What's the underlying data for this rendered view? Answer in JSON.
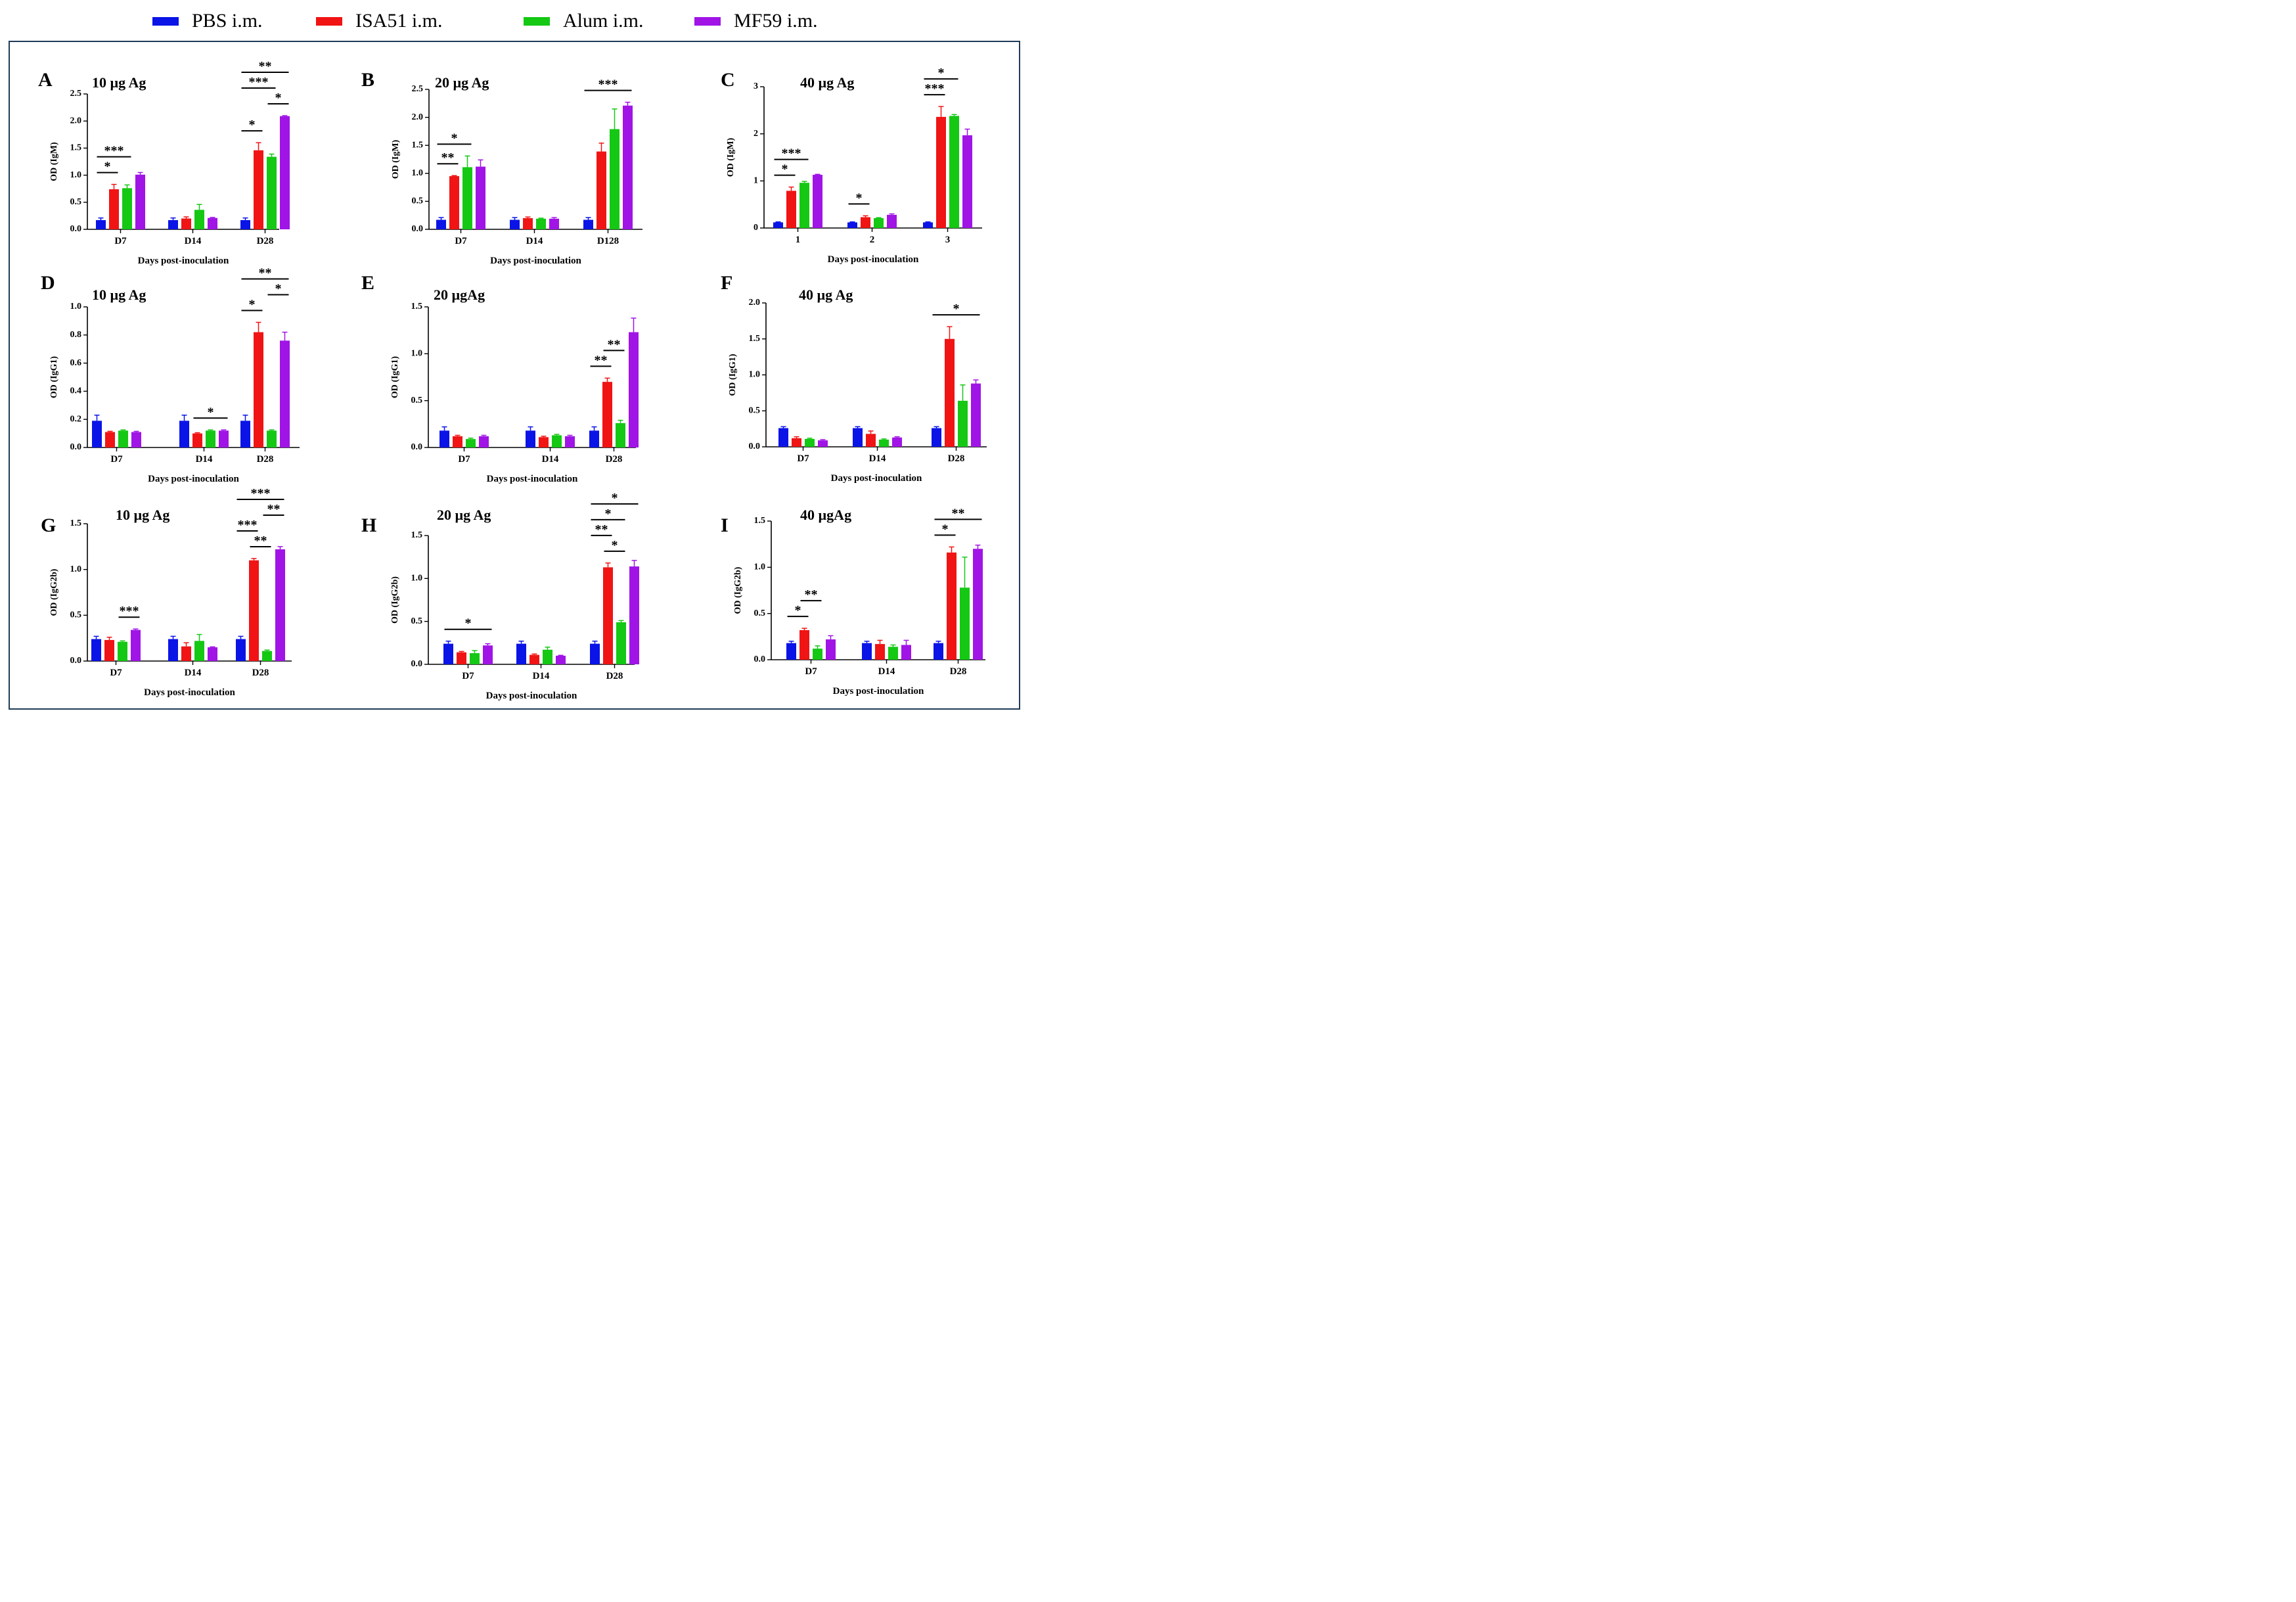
{
  "legend": {
    "items": [
      {
        "label": "PBS i.m.",
        "color": "#0a14e6"
      },
      {
        "label": "ISA51 i.m.",
        "color": "#f01414"
      },
      {
        "label": "Alum i.m.",
        "color": "#14c814"
      },
      {
        "label": "MF59 i.m.",
        "color": "#a014e6"
      }
    ]
  },
  "chart_data": [
    {
      "panel": "A",
      "type": "bar",
      "title": "10 µg Ag",
      "ylabel": "OD (IgM)",
      "xlabel": "Days post-inoculation",
      "categories": [
        "D7",
        "D14",
        "D28"
      ],
      "ylim": [
        0,
        2.5
      ],
      "yticks": [
        "0.0",
        "0.5",
        "1.0",
        "1.5",
        "2.0",
        "2.5"
      ],
      "series": [
        {
          "name": "PBS i.m.",
          "values": [
            0.17,
            0.17,
            0.17
          ],
          "err": [
            0.04,
            0.04,
            0.04
          ]
        },
        {
          "name": "ISA51 i.m.",
          "values": [
            0.74,
            0.2,
            1.46
          ],
          "err": [
            0.09,
            0.03,
            0.14
          ]
        },
        {
          "name": "Alum i.m.",
          "values": [
            0.76,
            0.36,
            1.34
          ],
          "err": [
            0.06,
            0.1,
            0.05
          ]
        },
        {
          "name": "MF59 i.m.",
          "values": [
            1.01,
            0.21,
            2.09
          ],
          "err": [
            0.04,
            0.01,
            0.01
          ]
        }
      ],
      "sig": [
        [
          "D7",
          0,
          1,
          "*"
        ],
        [
          "D7",
          0,
          2,
          "***"
        ],
        [
          "D28",
          0,
          1,
          "*"
        ],
        [
          "D28",
          2,
          3,
          "*"
        ],
        [
          "D28",
          0,
          2,
          "***"
        ],
        [
          "D28",
          0,
          3,
          "**"
        ]
      ]
    },
    {
      "panel": "B",
      "type": "bar",
      "title": "20 µg Ag",
      "ylabel": "OD (IgM)",
      "xlabel": "Days post-inoculation",
      "categories": [
        "D7",
        "D14",
        "D128"
      ],
      "ylim": [
        0,
        2.5
      ],
      "yticks": [
        "0.0",
        "0.5",
        "1.0",
        "1.5",
        "2.0",
        "2.5"
      ],
      "series": [
        {
          "name": "PBS i.m.",
          "values": [
            0.17,
            0.17,
            0.17
          ],
          "err": [
            0.04,
            0.04,
            0.04
          ]
        },
        {
          "name": "ISA51 i.m.",
          "values": [
            0.95,
            0.2,
            1.39
          ],
          "err": [
            0.01,
            0.02,
            0.15
          ]
        },
        {
          "name": "Alum i.m.",
          "values": [
            1.11,
            0.19,
            1.79
          ],
          "err": [
            0.2,
            0.01,
            0.36
          ]
        },
        {
          "name": "MF59 i.m.",
          "values": [
            1.12,
            0.19,
            2.21
          ],
          "err": [
            0.12,
            0.02,
            0.06
          ]
        }
      ],
      "sig": [
        [
          "D7",
          0,
          1,
          "**"
        ],
        [
          "D7",
          0,
          2,
          "*"
        ],
        [
          "D128",
          0,
          3,
          "***"
        ]
      ]
    },
    {
      "panel": "C",
      "type": "bar",
      "title": "40 µg Ag",
      "ylabel": "OD (IgM)",
      "xlabel": "Days post-inoculation",
      "categories": [
        "1",
        "2",
        "3"
      ],
      "ylim": [
        0,
        3
      ],
      "yticks": [
        "0",
        "1",
        "2",
        "3"
      ],
      "series": [
        {
          "name": "PBS i.m.",
          "values": [
            0.12,
            0.12,
            0.12
          ],
          "err": [
            0.01,
            0.01,
            0.01
          ]
        },
        {
          "name": "ISA51 i.m.",
          "values": [
            0.79,
            0.23,
            2.36
          ],
          "err": [
            0.08,
            0.03,
            0.22
          ]
        },
        {
          "name": "Alum i.m.",
          "values": [
            0.96,
            0.21,
            2.38
          ],
          "err": [
            0.03,
            0.01,
            0.03
          ]
        },
        {
          "name": "MF59 i.m.",
          "values": [
            1.13,
            0.28,
            1.97
          ],
          "err": [
            0.01,
            0.02,
            0.13
          ]
        }
      ],
      "sig": [
        [
          "1",
          0,
          1,
          "*"
        ],
        [
          "1",
          0,
          2,
          "***"
        ],
        [
          "2",
          0,
          1,
          "*"
        ],
        [
          "3",
          0,
          1,
          "***"
        ],
        [
          "3",
          0,
          2,
          "*"
        ]
      ]
    },
    {
      "panel": "D",
      "type": "bar",
      "title": "10 µg Ag",
      "ylabel": "OD (IgG1)",
      "xlabel": "Days post-inoculation",
      "categories": [
        "D7",
        "D14",
        "D28"
      ],
      "ylim": [
        0,
        1.0
      ],
      "yticks": [
        "0.0",
        "0.2",
        "0.4",
        "0.6",
        "0.8",
        "1.0"
      ],
      "series": [
        {
          "name": "PBS i.m.",
          "values": [
            0.19,
            0.19,
            0.19
          ],
          "err": [
            0.04,
            0.04,
            0.04
          ]
        },
        {
          "name": "ISA51 i.m.",
          "values": [
            0.11,
            0.1,
            0.82
          ],
          "err": [
            0.005,
            0.005,
            0.07
          ]
        },
        {
          "name": "Alum i.m.",
          "values": [
            0.12,
            0.12,
            0.12
          ],
          "err": [
            0.005,
            0.005,
            0.005
          ]
        },
        {
          "name": "MF59 i.m.",
          "values": [
            0.11,
            0.12,
            0.76
          ],
          "err": [
            0.005,
            0.005,
            0.06
          ]
        }
      ],
      "sig": [
        [
          "D14",
          1,
          3,
          "*"
        ],
        [
          "D28",
          0,
          1,
          "*"
        ],
        [
          "D28",
          2,
          3,
          "*"
        ],
        [
          "D28",
          0,
          3,
          "**"
        ]
      ]
    },
    {
      "panel": "E",
      "type": "bar",
      "title": "20 µgAg",
      "ylabel": "OD (IgG1)",
      "xlabel": "Days post-inoculation",
      "categories": [
        "D7",
        "D14",
        "D28"
      ],
      "ylim": [
        0,
        1.5
      ],
      "yticks": [
        "0.0",
        "0.5",
        "1.0",
        "1.5"
      ],
      "series": [
        {
          "name": "PBS i.m.",
          "values": [
            0.18,
            0.18,
            0.18
          ],
          "err": [
            0.04,
            0.04,
            0.04
          ]
        },
        {
          "name": "ISA51 i.m.",
          "values": [
            0.12,
            0.11,
            0.7
          ],
          "err": [
            0.01,
            0.01,
            0.04
          ]
        },
        {
          "name": "Alum i.m.",
          "values": [
            0.09,
            0.13,
            0.26
          ],
          "err": [
            0.01,
            0.01,
            0.03
          ]
        },
        {
          "name": "MF59 i.m.",
          "values": [
            0.12,
            0.12,
            1.23
          ],
          "err": [
            0.01,
            0.01,
            0.15
          ]
        }
      ],
      "sig": [
        [
          "D28",
          0,
          1,
          "**"
        ],
        [
          "D28",
          1,
          2,
          "**"
        ]
      ]
    },
    {
      "panel": "F",
      "type": "bar",
      "title": "40 µg Ag",
      "ylabel": "OD (IgG1)",
      "xlabel": "Days post-inoculation",
      "categories": [
        "D7",
        "D14",
        "D28"
      ],
      "ylim": [
        0,
        2.0
      ],
      "yticks": [
        "0.0",
        "0.5",
        "1.0",
        "1.5",
        "2.0"
      ],
      "series": [
        {
          "name": "PBS i.m.",
          "values": [
            0.26,
            0.26,
            0.26
          ],
          "err": [
            0.02,
            0.02,
            0.02
          ]
        },
        {
          "name": "ISA51 i.m.",
          "values": [
            0.12,
            0.18,
            1.5
          ],
          "err": [
            0.02,
            0.04,
            0.17
          ]
        },
        {
          "name": "Alum i.m.",
          "values": [
            0.11,
            0.1,
            0.64
          ],
          "err": [
            0.01,
            0.01,
            0.22
          ]
        },
        {
          "name": "MF59 i.m.",
          "values": [
            0.09,
            0.13,
            0.88
          ],
          "err": [
            0.01,
            0.01,
            0.05
          ]
        }
      ],
      "sig": [
        [
          "D28",
          0,
          3,
          "*"
        ]
      ]
    },
    {
      "panel": "G",
      "type": "bar",
      "title": "10 µg Ag",
      "ylabel": "OD (IgG2b)",
      "xlabel": "Days post-inoculation",
      "categories": [
        "D7",
        "D14",
        "D28"
      ],
      "ylim": [
        0,
        1.5
      ],
      "yticks": [
        "0.0",
        "0.5",
        "1.0",
        "1.5"
      ],
      "series": [
        {
          "name": "PBS i.m.",
          "values": [
            0.24,
            0.24,
            0.24
          ],
          "err": [
            0.03,
            0.03,
            0.03
          ]
        },
        {
          "name": "ISA51 i.m.",
          "values": [
            0.23,
            0.16,
            1.1
          ],
          "err": [
            0.03,
            0.04,
            0.02
          ]
        },
        {
          "name": "Alum i.m.",
          "values": [
            0.21,
            0.22,
            0.11
          ],
          "err": [
            0.01,
            0.07,
            0.01
          ]
        },
        {
          "name": "MF59 i.m.",
          "values": [
            0.34,
            0.15,
            1.22
          ],
          "err": [
            0.01,
            0.005,
            0.03
          ]
        }
      ],
      "sig": [
        [
          "D7",
          2,
          3,
          "***"
        ],
        [
          "D28",
          1,
          2,
          "**"
        ],
        [
          "D28",
          0,
          1,
          "***"
        ],
        [
          "D28",
          2,
          3,
          "**"
        ],
        [
          "D28",
          0,
          3,
          "***"
        ]
      ]
    },
    {
      "panel": "H",
      "type": "bar",
      "title": "20 µg Ag",
      "ylabel": "OD (IgG2b)",
      "xlabel": "Days post-inoculation",
      "categories": [
        "D7",
        "D14",
        "D28"
      ],
      "ylim": [
        0,
        1.5
      ],
      "yticks": [
        "0.0",
        "0.5",
        "1.0",
        "1.5"
      ],
      "series": [
        {
          "name": "PBS i.m.",
          "values": [
            0.24,
            0.24,
            0.24
          ],
          "err": [
            0.03,
            0.03,
            0.03
          ]
        },
        {
          "name": "ISA51 i.m.",
          "values": [
            0.14,
            0.11,
            1.13
          ],
          "err": [
            0.01,
            0.01,
            0.05
          ]
        },
        {
          "name": "Alum i.m.",
          "values": [
            0.13,
            0.17,
            0.49
          ],
          "err": [
            0.03,
            0.03,
            0.02
          ]
        },
        {
          "name": "MF59 i.m.",
          "values": [
            0.22,
            0.1,
            1.14
          ],
          "err": [
            0.02,
            0.005,
            0.07
          ]
        }
      ],
      "sig": [
        [
          "D7",
          0,
          3,
          "*"
        ],
        [
          "D28",
          1,
          2,
          "*"
        ],
        [
          "D28",
          0,
          1,
          "**"
        ],
        [
          "D28",
          0,
          2,
          "*"
        ],
        [
          "D28",
          0,
          3,
          "*"
        ]
      ]
    },
    {
      "panel": "I",
      "type": "bar",
      "title": "40 µgAg",
      "ylabel": "OD (IgG2b)",
      "xlabel": "Days post-inoculation",
      "categories": [
        "D7",
        "D14",
        "D28"
      ],
      "ylim": [
        0,
        1.5
      ],
      "yticks": [
        "0.0",
        "0.5",
        "1.0",
        "1.5"
      ],
      "series": [
        {
          "name": "PBS i.m.",
          "values": [
            0.18,
            0.18,
            0.18
          ],
          "err": [
            0.02,
            0.02,
            0.02
          ]
        },
        {
          "name": "ISA51 i.m.",
          "values": [
            0.32,
            0.17,
            1.16
          ],
          "err": [
            0.02,
            0.04,
            0.06
          ]
        },
        {
          "name": "Alum i.m.",
          "values": [
            0.12,
            0.14,
            0.78
          ],
          "err": [
            0.03,
            0.02,
            0.33
          ]
        },
        {
          "name": "MF59 i.m.",
          "values": [
            0.22,
            0.16,
            1.2
          ],
          "err": [
            0.04,
            0.05,
            0.04
          ]
        }
      ],
      "sig": [
        [
          "D7",
          0,
          1,
          "*"
        ],
        [
          "D7",
          1,
          2,
          "**"
        ],
        [
          "D28",
          0,
          1,
          "*"
        ],
        [
          "D28",
          0,
          3,
          "**"
        ]
      ]
    }
  ]
}
